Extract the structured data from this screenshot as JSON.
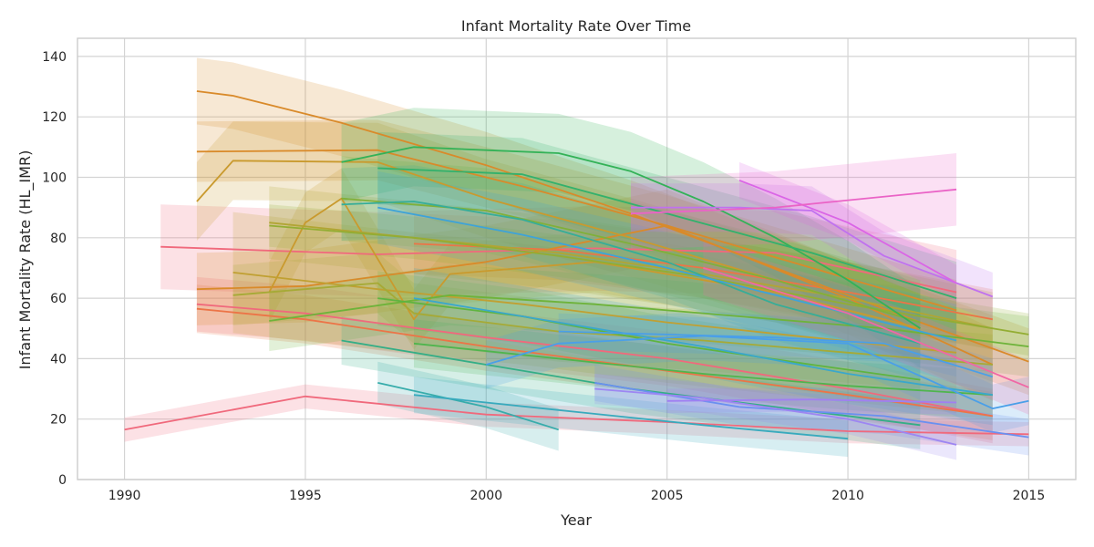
{
  "chart_data": {
    "type": "line",
    "title": "Infant Mortality Rate Over Time",
    "xlabel": "Year",
    "ylabel": "Infant Mortality Rate (HL_IMR)",
    "xlim": [
      1988.7,
      2016.3
    ],
    "ylim": [
      0,
      146
    ],
    "xticks": [
      1990,
      1995,
      2000,
      2005,
      2010,
      2015
    ],
    "yticks": [
      0,
      20,
      40,
      60,
      80,
      100,
      120,
      140
    ],
    "grid": true,
    "legend": "none",
    "band_opacity": 0.2,
    "series": [
      {
        "color": "#f0697c",
        "x": [
          1990,
          1995,
          2000,
          2005,
          2010,
          2015
        ],
        "values": [
          16.5,
          27.5,
          21.5,
          19,
          16,
          15
        ],
        "band": 4
      },
      {
        "color": "#f0697c",
        "x": [
          1991,
          1997,
          2003,
          2008,
          2013
        ],
        "values": [
          77,
          74.5,
          76.5,
          75,
          62
        ],
        "band": 14
      },
      {
        "color": "#f0697c",
        "x": [
          1992,
          1995,
          2000,
          2005,
          2010,
          2014
        ],
        "values": [
          58,
          55,
          47,
          40,
          30,
          21
        ],
        "band": 9
      },
      {
        "color": "#ec7447",
        "x": [
          1992,
          1995,
          2000,
          2005,
          2010,
          2014
        ],
        "values": [
          56.5,
          53,
          44,
          36,
          28,
          21
        ],
        "band": 8
      },
      {
        "color": "#ec7447",
        "x": [
          1998,
          2002,
          2006,
          2010,
          2014
        ],
        "values": [
          78,
          76,
          70,
          62,
          53
        ],
        "band": 10
      },
      {
        "color": "#d98a2a",
        "x": [
          1992,
          1993,
          1996,
          2000,
          2004,
          2008,
          2012,
          2015
        ],
        "values": [
          128.5,
          127,
          118,
          104,
          88,
          70,
          52,
          39
        ],
        "band": 11
      },
      {
        "color": "#d98a2a",
        "x": [
          1992,
          1997,
          2001,
          2005,
          2009,
          2013
        ],
        "values": [
          108.5,
          109,
          97,
          84,
          70,
          56
        ],
        "band": 10
      },
      {
        "color": "#d98a2a",
        "x": [
          1992,
          1995,
          2000,
          2005,
          2010,
          2014
        ],
        "values": [
          63,
          64,
          72,
          84,
          60,
          38
        ],
        "band": 12
      },
      {
        "color": "#c99a2e",
        "x": [
          1992,
          1993,
          1997,
          2000,
          2004,
          2008,
          2012
        ],
        "values": [
          92,
          105.5,
          105,
          93,
          80,
          66,
          52
        ],
        "band": 13
      },
      {
        "color": "#c99a2e",
        "x": [
          1994,
          1995,
          1996,
          1998,
          1999,
          2003,
          2008,
          2012
        ],
        "values": [
          62,
          85,
          93,
          53,
          68,
          72,
          62,
          50
        ],
        "band": 10
      },
      {
        "color": "#c0a032",
        "x": [
          1993,
          1997,
          2001,
          2005,
          2009,
          2013
        ],
        "values": [
          68.5,
          63,
          58,
          52,
          47,
          42
        ],
        "band": 20
      },
      {
        "color": "#b1a534",
        "x": [
          1994,
          1998,
          2002,
          2006,
          2010,
          2014
        ],
        "values": [
          85,
          80,
          75,
          68,
          60,
          50
        ],
        "band": 12
      },
      {
        "color": "#a6aa36",
        "x": [
          1993,
          1997,
          1998,
          2002,
          2006,
          2010,
          2014
        ],
        "values": [
          61,
          65,
          55,
          49,
          46,
          42,
          38
        ],
        "band": 10
      },
      {
        "color": "#93ad33",
        "x": [
          1994,
          1998,
          2002,
          2006,
          2010,
          2015
        ],
        "values": [
          84,
          80,
          74,
          67,
          58,
          48
        ],
        "band": 7
      },
      {
        "color": "#80b03a",
        "x": [
          1996,
          2000,
          2004,
          2008,
          2012
        ],
        "values": [
          93,
          89,
          78,
          66,
          52
        ],
        "band": 14
      },
      {
        "color": "#6eb33a",
        "x": [
          1994,
          1999,
          2003,
          2007,
          2011,
          2015
        ],
        "values": [
          52.5,
          61,
          58,
          54,
          50,
          44
        ],
        "band": 10
      },
      {
        "color": "#5fb440",
        "x": [
          1997,
          2001,
          2005,
          2009,
          2012
        ],
        "values": [
          60,
          54,
          45,
          38,
          33
        ],
        "band": 9
      },
      {
        "color": "#4fb54d",
        "x": [
          1998,
          2002,
          2006,
          2010,
          2014
        ],
        "values": [
          45,
          40,
          35,
          31,
          28
        ],
        "band": 8
      },
      {
        "color": "#33b257",
        "x": [
          1996,
          1998,
          2000,
          2002,
          2004,
          2006,
          2008,
          2010,
          2012
        ],
        "values": [
          105,
          110,
          109,
          108,
          102,
          92,
          80,
          66,
          50
        ],
        "band": 13
      },
      {
        "color": "#32b16c",
        "x": [
          1997,
          2001,
          2005,
          2009,
          2013
        ],
        "values": [
          103,
          101,
          88,
          75,
          60
        ],
        "band": 12
      },
      {
        "color": "#34ae86",
        "x": [
          1996,
          2000,
          2004,
          2008,
          2012
        ],
        "values": [
          46,
          38,
          30,
          24,
          18
        ],
        "band": 8
      },
      {
        "color": "#36ad98",
        "x": [
          1996,
          1998,
          2001,
          2005,
          2008,
          2012
        ],
        "values": [
          91,
          92,
          86,
          72,
          58,
          45
        ],
        "band": 12
      },
      {
        "color": "#37acab",
        "x": [
          1997,
          2000,
          2002
        ],
        "values": [
          32,
          24,
          16.5
        ],
        "band": 7
      },
      {
        "color": "#38aabd",
        "x": [
          1998,
          2002,
          2006,
          2010
        ],
        "values": [
          28,
          23,
          18,
          13.5
        ],
        "band": 6
      },
      {
        "color": "#3aa7cc",
        "x": [
          1998,
          2002,
          2006,
          2010,
          2014
        ],
        "values": [
          60,
          52,
          44,
          35,
          28
        ],
        "band": 10
      },
      {
        "color": "#3ea3d8",
        "x": [
          1997,
          2001,
          2005,
          2009,
          2013
        ],
        "values": [
          90,
          81,
          70,
          58,
          46
        ],
        "band": 12
      },
      {
        "color": "#4a9fe8",
        "x": [
          2000,
          2002,
          2006,
          2010,
          2014,
          2015
        ],
        "values": [
          38,
          45,
          47.5,
          45,
          23.5,
          26
        ],
        "band": 8
      },
      {
        "color": "#4a9fe8",
        "x": [
          2002,
          2005,
          2008,
          2011,
          2014
        ],
        "values": [
          49,
          48,
          47,
          45,
          34
        ],
        "band": 6
      },
      {
        "color": "#6a90f0",
        "x": [
          2003,
          2007,
          2011,
          2015
        ],
        "values": [
          32,
          24,
          21,
          14
        ],
        "band": 6
      },
      {
        "color": "#9d86f2",
        "x": [
          2003,
          2006,
          2010,
          2013
        ],
        "values": [
          30,
          27,
          20,
          11.5
        ],
        "band": 5
      },
      {
        "color": "#a07ff2",
        "x": [
          2005,
          2009,
          2013
        ],
        "values": [
          26,
          26.5,
          25.5
        ],
        "band": 4
      },
      {
        "color": "#c071ef",
        "x": [
          2004,
          2007,
          2009,
          2011,
          2014
        ],
        "values": [
          90,
          90,
          89,
          74,
          60.5
        ],
        "band": 8
      },
      {
        "color": "#da65e6",
        "x": [
          2007,
          2010,
          2013
        ],
        "values": [
          99,
          85,
          65
        ],
        "band": 6
      },
      {
        "color": "#ea63c6",
        "x": [
          2004,
          2008,
          2013
        ],
        "values": [
          88,
          90,
          96
        ],
        "band": 12
      },
      {
        "color": "#f067a5",
        "x": [
          2006,
          2010,
          2015
        ],
        "values": [
          70,
          55,
          30.5
        ],
        "band": 9
      }
    ]
  }
}
